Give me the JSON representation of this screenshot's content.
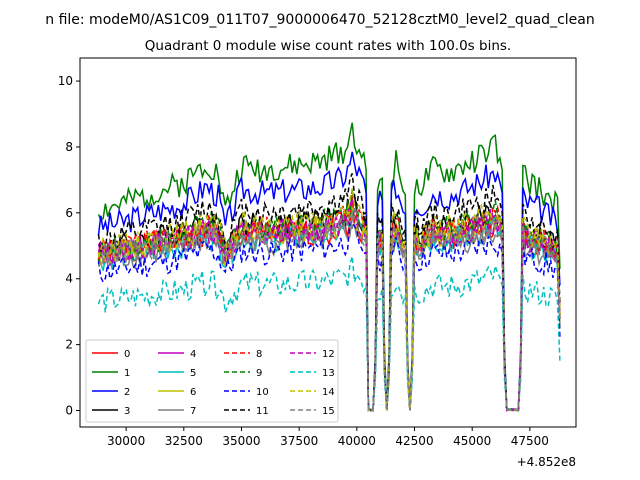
{
  "figure": {
    "suptitle": "n file: modeM0/AS1C09_011T07_9000006470_52128cztM0_level2_quad_clean"
  },
  "chart_data": {
    "type": "line",
    "title": "Quadrant 0 module wise count rates with 100.0s bins.",
    "xlabel": "",
    "ylabel": "",
    "x_offset_label": "+4.852e8",
    "xlim": [
      28000,
      49500
    ],
    "ylim": [
      -0.5,
      10.7
    ],
    "x_ticks": [
      30000,
      32500,
      35000,
      37500,
      40000,
      42500,
      45000,
      47500
    ],
    "x_tick_labels": [
      "30000",
      "32500",
      "35000",
      "37500",
      "40000",
      "42500",
      "45000",
      "47500"
    ],
    "y_ticks": [
      0,
      2,
      4,
      6,
      8,
      10
    ],
    "y_tick_labels": [
      "0",
      "2",
      "4",
      "6",
      "8",
      "10"
    ],
    "grid": false,
    "legend_position": "lower-left",
    "legend_columns": 4,
    "anchors": {
      "x": [
        28800,
        30000,
        32500,
        33500,
        34000,
        34300,
        35000,
        36000,
        37500,
        38500,
        39500,
        39800,
        40200,
        40400,
        40500,
        40700,
        40900,
        41100,
        41300,
        41500,
        41700,
        41900,
        42100,
        42300,
        42500,
        42800,
        43300,
        44000,
        45000,
        46000,
        46300,
        46500,
        46800,
        47000,
        47200,
        47400,
        47800,
        48400,
        48800
      ],
      "t": [
        0,
        0.1,
        0.35,
        0.6,
        0.45,
        0,
        0.55,
        0.5,
        0.55,
        0.6,
        0.75,
        1,
        0.7,
        0.5,
        "d",
        "d",
        0.3,
        0.4,
        "d",
        0.45,
        0.6,
        0.4,
        0.2,
        "d",
        0.35,
        0.3,
        0.5,
        0.45,
        0.6,
        0.8,
        0.5,
        "d",
        "d",
        "d",
        0.45,
        0.35,
        0.3,
        0.15,
        0
      ]
    },
    "series": [
      {
        "name": "0",
        "color": "#ff0000",
        "dash": false,
        "base": 5.3,
        "amp": 1.0,
        "low": 1.5,
        "seed": 1
      },
      {
        "name": "1",
        "color": "#008000",
        "dash": false,
        "base": 7.3,
        "amp": 2.5,
        "low": 2.0,
        "seed": 2
      },
      {
        "name": "2",
        "color": "#0000ff",
        "dash": false,
        "base": 6.6,
        "amp": 2.1,
        "low": 1.8,
        "seed": 3
      },
      {
        "name": "3",
        "color": "#000000",
        "dash": false,
        "base": 5.6,
        "amp": 1.4,
        "low": 1.7,
        "seed": 4
      },
      {
        "name": "4",
        "color": "#bf00bf",
        "dash": false,
        "base": 5.4,
        "amp": 1.3,
        "low": 1.6,
        "seed": 5
      },
      {
        "name": "5",
        "color": "#00bfbf",
        "dash": false,
        "base": 5.2,
        "amp": 1.2,
        "low": 1.6,
        "seed": 6
      },
      {
        "name": "6",
        "color": "#bfbf00",
        "dash": false,
        "base": 5.4,
        "amp": 1.3,
        "low": 1.7,
        "seed": 7
      },
      {
        "name": "7",
        "color": "#808080",
        "dash": false,
        "base": 5.1,
        "amp": 1.1,
        "low": 1.6,
        "seed": 8
      },
      {
        "name": "8",
        "color": "#ff0000",
        "dash": true,
        "base": 5.5,
        "amp": 1.4,
        "low": 1.7,
        "seed": 9
      },
      {
        "name": "9",
        "color": "#008000",
        "dash": true,
        "base": 5.6,
        "amp": 1.6,
        "low": 1.7,
        "seed": 10
      },
      {
        "name": "10",
        "color": "#0000ff",
        "dash": true,
        "base": 4.8,
        "amp": 1.2,
        "low": 1.6,
        "seed": 11
      },
      {
        "name": "11",
        "color": "#000000",
        "dash": true,
        "base": 6.0,
        "amp": 1.7,
        "low": 1.8,
        "seed": 12
      },
      {
        "name": "12",
        "color": "#bf00bf",
        "dash": true,
        "base": 5.4,
        "amp": 1.3,
        "low": 1.6,
        "seed": 13
      },
      {
        "name": "13",
        "color": "#00bfbf",
        "dash": true,
        "base": 3.8,
        "amp": 1.0,
        "low": 1.3,
        "seed": 14
      },
      {
        "name": "14",
        "color": "#bfbf00",
        "dash": true,
        "base": 5.6,
        "amp": 1.5,
        "low": 1.7,
        "seed": 15
      },
      {
        "name": "15",
        "color": "#808080",
        "dash": true,
        "base": 5.3,
        "amp": 1.2,
        "low": 1.6,
        "seed": 16
      }
    ]
  }
}
